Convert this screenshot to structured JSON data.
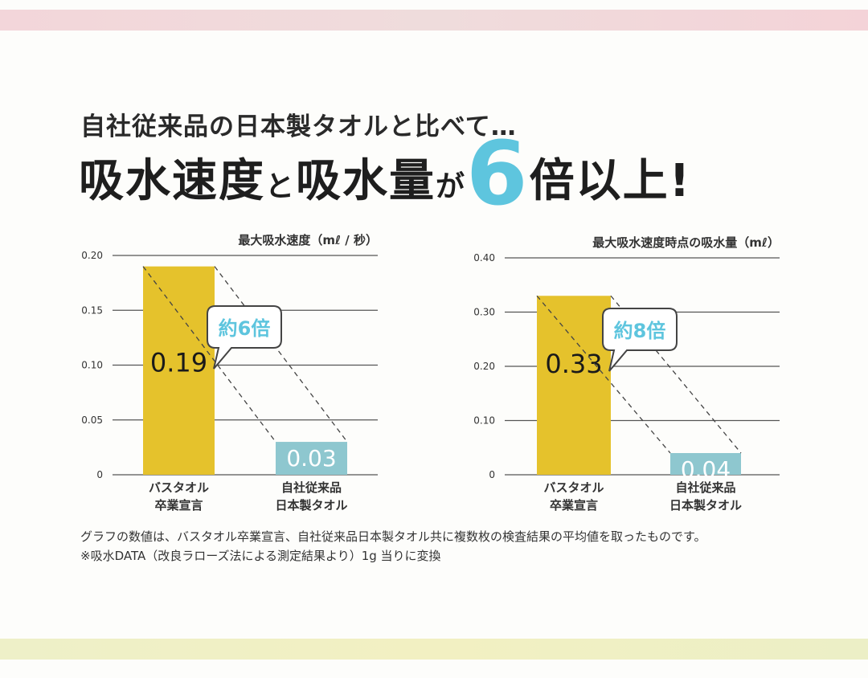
{
  "subtitle": "自社従来品の日本製タオルと比べて…",
  "headline": {
    "part1": "吸水速度",
    "p2": "と",
    "part3": "吸水量",
    "p4": "が",
    "num": "6",
    "part5": "倍以上!"
  },
  "notes": [
    "グラフの数値は、バスタオル卒業宣言、自社従来品日本製タオル共に複数枚の検査結果の平均値を取ったものです。",
    "※吸水DATA（改良ラローズ法による測定結果より）1g 当りに変換"
  ],
  "colors": {
    "primary": "#e5c22c",
    "secondary": "#8ec7cf",
    "accent": "#5ec5de"
  },
  "chart_data": [
    {
      "type": "bar",
      "title": "最大吸水速度（mℓ / 秒）",
      "categories": [
        "バスタオル\n卒業宣言",
        "自社従来品\n日本製タオル"
      ],
      "values": [
        0.19,
        0.03
      ],
      "data_labels": [
        "0.19",
        "0.03"
      ],
      "ylim": [
        0,
        0.2
      ],
      "yticks": [
        "0",
        "0.05",
        "0.10",
        "0.15",
        "0.20"
      ],
      "annotation": "約6倍",
      "grid": true
    },
    {
      "type": "bar",
      "title": "最大吸水速度時点の吸水量（mℓ）",
      "categories": [
        "バスタオル\n卒業宣言",
        "自社従来品\n日本製タオル"
      ],
      "values": [
        0.33,
        0.04
      ],
      "data_labels": [
        "0.33",
        "0.04"
      ],
      "ylim": [
        0,
        0.4
      ],
      "yticks": [
        "0",
        "0.10",
        "0.20",
        "0.30",
        "0.40"
      ],
      "annotation": "約8倍",
      "grid": true
    }
  ]
}
